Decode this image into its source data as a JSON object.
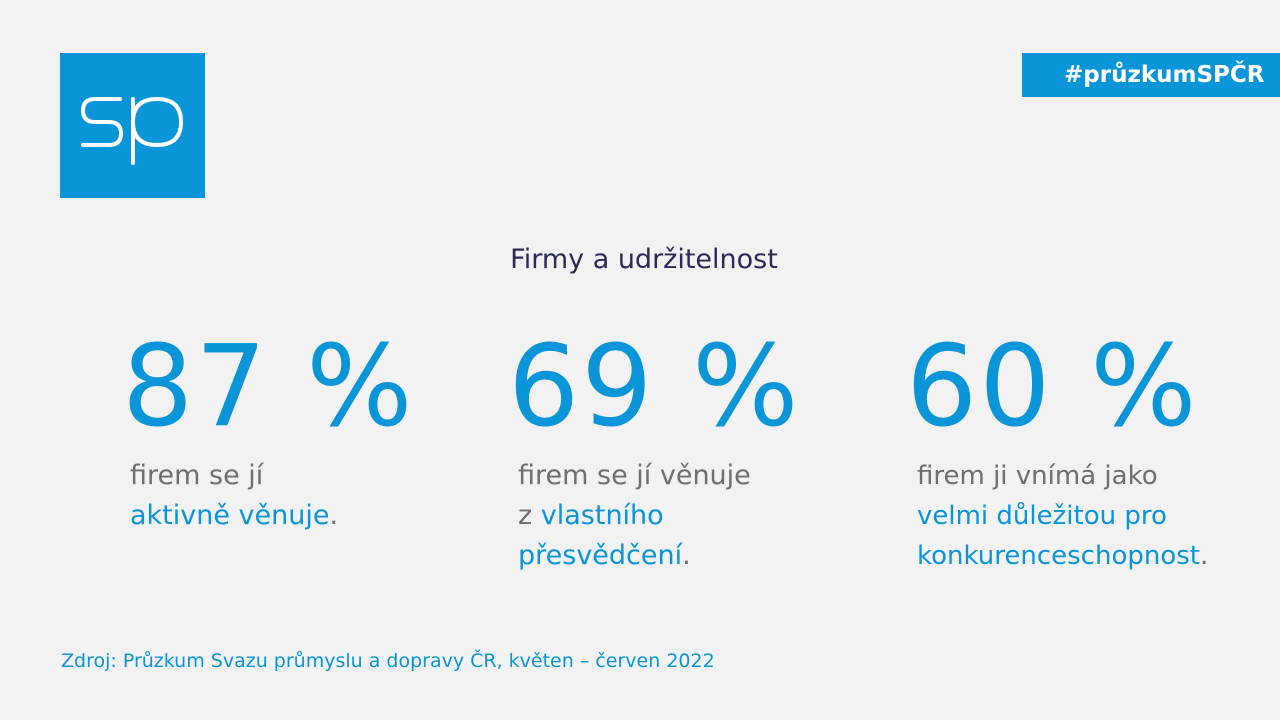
{
  "header": {
    "hashtag": "#průzkumSPČR"
  },
  "logo": {
    "letters": "SP",
    "bg_color": "#0a95d9"
  },
  "title": "Firmy a udržitelnost",
  "stats": [
    {
      "value": "87 %",
      "lines": [
        [
          {
            "t": "firem se jí"
          }
        ],
        [
          {
            "t": "aktivně věnuje",
            "hl": true
          },
          {
            "t": "."
          }
        ]
      ]
    },
    {
      "value": "69 %",
      "lines": [
        [
          {
            "t": "firem se jí věnuje"
          }
        ],
        [
          {
            "t": "z "
          },
          {
            "t": "vlastního",
            "hl": true
          }
        ],
        [
          {
            "t": "přesvědčení",
            "hl": true
          },
          {
            "t": "."
          }
        ]
      ]
    },
    {
      "value": "60 %",
      "lines": [
        [
          {
            "t": "firem ji vnímá jako"
          }
        ],
        [
          {
            "t": "velmi důležitou pro",
            "hl": true
          }
        ],
        [
          {
            "t": "konkurenceschopnost",
            "hl": true
          },
          {
            "t": "."
          }
        ]
      ]
    }
  ],
  "source": "Zdroj: Průzkum Svazu průmyslu a dopravy ČR, květen – červen 2022",
  "colors": {
    "accent": "#0a95d9",
    "title": "#2b2a56",
    "text": "#6e6e6e",
    "background": "#f2f2f2"
  }
}
